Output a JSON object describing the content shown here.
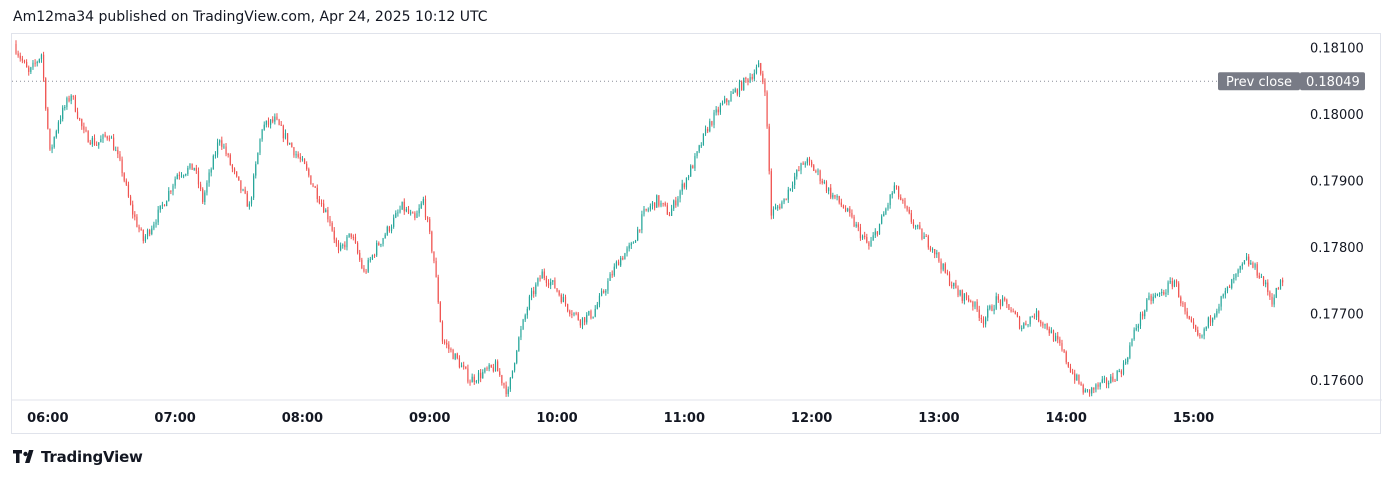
{
  "header": {
    "publisher_line": "Am12ma34 published on TradingView.com, Apr 24, 2025 10:12 UTC"
  },
  "footer": {
    "logo_text": "TradingView"
  },
  "colors": {
    "up": "#26a69a",
    "down": "#ef5350",
    "axis_text": "#131722",
    "prev_close_badge": "#787b86",
    "border": "#e0e3eb"
  },
  "chart_data": {
    "type": "candlestick",
    "x_ticks": [
      "06:00",
      "07:00",
      "08:00",
      "09:00",
      "10:00",
      "11:00",
      "12:00",
      "13:00",
      "14:00",
      "15:00"
    ],
    "y_ticks": [
      "0.18100",
      "0.18000",
      "0.17900",
      "0.17800",
      "0.17700",
      "0.17600"
    ],
    "y_range": [
      0.1757,
      0.1812
    ],
    "x_range": [
      "05:45",
      "15:45"
    ],
    "prev_close": {
      "label": "Prev close",
      "value": "0.18049"
    },
    "price_path": [
      [
        "05:45",
        0.18105
      ],
      [
        "05:52",
        0.1806
      ],
      [
        "05:58",
        0.1809
      ],
      [
        "06:02",
        0.1794
      ],
      [
        "06:06",
        0.1799
      ],
      [
        "06:12",
        0.1803
      ],
      [
        "06:18",
        0.1797
      ],
      [
        "06:24",
        0.17955
      ],
      [
        "06:30",
        0.1797
      ],
      [
        "06:36",
        0.17915
      ],
      [
        "06:40",
        0.1786
      ],
      [
        "06:46",
        0.1781
      ],
      [
        "06:54",
        0.17855
      ],
      [
        "07:02",
        0.1791
      ],
      [
        "07:10",
        0.1792
      ],
      [
        "07:14",
        0.1787
      ],
      [
        "07:22",
        0.17965
      ],
      [
        "07:30",
        0.179
      ],
      [
        "07:36",
        0.1786
      ],
      [
        "07:42",
        0.1798
      ],
      [
        "07:48",
        0.1799
      ],
      [
        "07:56",
        0.1795
      ],
      [
        "08:02",
        0.1792
      ],
      [
        "08:08",
        0.1788
      ],
      [
        "08:14",
        0.1784
      ],
      [
        "08:18",
        0.1779
      ],
      [
        "08:24",
        0.1782
      ],
      [
        "08:30",
        0.1776
      ],
      [
        "08:36",
        0.178
      ],
      [
        "08:42",
        0.1783
      ],
      [
        "08:48",
        0.1786
      ],
      [
        "08:54",
        0.1784
      ],
      [
        "08:58",
        0.1787
      ],
      [
        "09:03",
        0.1778
      ],
      [
        "09:07",
        0.1766
      ],
      [
        "09:14",
        0.1763
      ],
      [
        "09:20",
        0.176
      ],
      [
        "09:26",
        0.1761
      ],
      [
        "09:32",
        0.1762
      ],
      [
        "09:38",
        0.1758
      ],
      [
        "09:42",
        0.1765
      ],
      [
        "09:48",
        0.1772
      ],
      [
        "09:54",
        0.1776
      ],
      [
        "10:00",
        0.1774
      ],
      [
        "10:06",
        0.1771
      ],
      [
        "10:12",
        0.1769
      ],
      [
        "10:18",
        0.177
      ],
      [
        "10:24",
        0.1774
      ],
      [
        "10:30",
        0.1778
      ],
      [
        "10:36",
        0.178
      ],
      [
        "10:42",
        0.1785
      ],
      [
        "10:48",
        0.1787
      ],
      [
        "10:54",
        0.1785
      ],
      [
        "11:00",
        0.1789
      ],
      [
        "11:06",
        0.1793
      ],
      [
        "11:12",
        0.1798
      ],
      [
        "11:18",
        0.1801
      ],
      [
        "11:24",
        0.1803
      ],
      [
        "11:30",
        0.1805
      ],
      [
        "11:36",
        0.1807
      ],
      [
        "11:39",
        0.1804
      ],
      [
        "11:42",
        0.1785
      ],
      [
        "11:48",
        0.1787
      ],
      [
        "11:52",
        0.179
      ],
      [
        "11:58",
        0.1793
      ],
      [
        "12:04",
        0.1791
      ],
      [
        "12:10",
        0.1788
      ],
      [
        "12:16",
        0.1786
      ],
      [
        "12:22",
        0.1783
      ],
      [
        "12:28",
        0.178
      ],
      [
        "12:34",
        0.1784
      ],
      [
        "12:40",
        0.1789
      ],
      [
        "12:46",
        0.1785
      ],
      [
        "12:52",
        0.1782
      ],
      [
        "12:58",
        0.178
      ],
      [
        "13:04",
        0.1776
      ],
      [
        "13:10",
        0.1773
      ],
      [
        "13:16",
        0.1772
      ],
      [
        "13:22",
        0.1769
      ],
      [
        "13:28",
        0.1772
      ],
      [
        "13:34",
        0.1771
      ],
      [
        "13:40",
        0.1768
      ],
      [
        "13:46",
        0.177
      ],
      [
        "13:52",
        0.1768
      ],
      [
        "13:58",
        0.1765
      ],
      [
        "14:04",
        0.1761
      ],
      [
        "14:10",
        0.1758
      ],
      [
        "14:16",
        0.1759
      ],
      [
        "14:22",
        0.176
      ],
      [
        "14:28",
        0.1762
      ],
      [
        "14:34",
        0.1768
      ],
      [
        "14:40",
        0.1772
      ],
      [
        "14:46",
        0.1773
      ],
      [
        "14:52",
        0.1775
      ],
      [
        "14:58",
        0.1769
      ],
      [
        "15:04",
        0.1766
      ],
      [
        "15:10",
        0.177
      ],
      [
        "15:16",
        0.1773
      ],
      [
        "15:22",
        0.1776
      ],
      [
        "15:26",
        0.1778
      ],
      [
        "15:32",
        0.1776
      ],
      [
        "15:38",
        0.1772
      ],
      [
        "15:42",
        0.17745
      ]
    ]
  }
}
